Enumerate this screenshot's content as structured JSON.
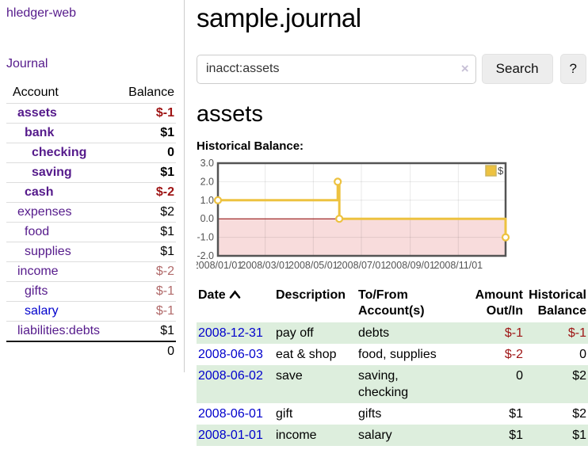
{
  "colors": {
    "link_purple": "#551a8b",
    "link_blue": "#0000cc",
    "negative_strong": "#9e1414",
    "negative_soft": "#b16a6a",
    "row_green": "#ddeedd",
    "chart_gold": "#edc240",
    "chart_negative_region": "#f8dcdc",
    "chart_zero_line": "#8b0000",
    "chart_border": "#545454"
  },
  "sidebar": {
    "brand": "hledger-web",
    "journal_link": "Journal",
    "accounts_table": {
      "headers": {
        "account": "Account",
        "balance": "Balance"
      },
      "rows": [
        {
          "account": "assets",
          "balance": "$-1",
          "indent": 1,
          "bold": true,
          "balance_tone": "strong",
          "link_color": "purple"
        },
        {
          "account": "bank",
          "balance": "$1",
          "indent": 2,
          "bold": true,
          "balance_tone": "none",
          "link_color": "purple"
        },
        {
          "account": "checking",
          "balance": "0",
          "indent": 3,
          "bold": true,
          "balance_tone": "none",
          "link_color": "purple"
        },
        {
          "account": "saving",
          "balance": "$1",
          "indent": 3,
          "bold": true,
          "balance_tone": "none",
          "link_color": "purple"
        },
        {
          "account": "cash",
          "balance": "$-2",
          "indent": 2,
          "bold": true,
          "balance_tone": "strong",
          "link_color": "purple"
        },
        {
          "account": "expenses",
          "balance": "$2",
          "indent": 1,
          "bold": false,
          "balance_tone": "none",
          "link_color": "purple"
        },
        {
          "account": "food",
          "balance": "$1",
          "indent": 2,
          "bold": false,
          "balance_tone": "none",
          "link_color": "purple"
        },
        {
          "account": "supplies",
          "balance": "$1",
          "indent": 2,
          "bold": false,
          "balance_tone": "none",
          "link_color": "purple"
        },
        {
          "account": "income",
          "balance": "$-2",
          "indent": 1,
          "bold": false,
          "balance_tone": "soft",
          "link_color": "purple"
        },
        {
          "account": "gifts",
          "balance": "$-1",
          "indent": 2,
          "bold": false,
          "balance_tone": "soft",
          "link_color": "purple"
        },
        {
          "account": "salary",
          "balance": "$-1",
          "indent": 2,
          "bold": false,
          "balance_tone": "soft",
          "link_color": "blue"
        },
        {
          "account": "liabilities:debts",
          "balance": "$1",
          "indent": 1,
          "bold": false,
          "balance_tone": "none",
          "link_color": "purple"
        }
      ],
      "total": "0"
    }
  },
  "main": {
    "title": "sample.journal",
    "search": {
      "value": "inacct:assets",
      "clear_icon": "×",
      "search_button": "Search",
      "help_button": "?"
    },
    "heading": "assets",
    "chart_title": "Historical Balance:",
    "register": {
      "headers": {
        "date": "Date",
        "description": "Description",
        "accounts": "To/From Account(s)",
        "amount": "Amount Out/In",
        "balance": "Historical Balance"
      },
      "rows": [
        {
          "date": "2008-12-31",
          "description": "pay off",
          "accounts": "debts",
          "amount": "$-1",
          "amount_tone": "strong",
          "balance": "$-1",
          "balance_tone": "strong",
          "green": true
        },
        {
          "date": "2008-06-03",
          "description": "eat & shop",
          "accounts": "food, supplies",
          "amount": "$-2",
          "amount_tone": "strong",
          "balance": "0",
          "balance_tone": "none",
          "green": false
        },
        {
          "date": "2008-06-02",
          "description": "save",
          "accounts": "saving, checking",
          "amount": "0",
          "amount_tone": "none",
          "balance": "$2",
          "balance_tone": "none",
          "green": true
        },
        {
          "date": "2008-06-01",
          "description": "gift",
          "accounts": "gifts",
          "amount": "$1",
          "amount_tone": "none",
          "balance": "$2",
          "balance_tone": "none",
          "green": false
        },
        {
          "date": "2008-01-01",
          "description": "income",
          "accounts": "salary",
          "amount": "$1",
          "amount_tone": "none",
          "balance": "$1",
          "balance_tone": "none",
          "green": true
        }
      ]
    }
  },
  "chart_data": {
    "type": "line",
    "step": true,
    "title": "Historical Balance:",
    "series": [
      {
        "name": "$",
        "color": "#edc240",
        "points": [
          [
            "2008/01/01",
            1
          ],
          [
            "2008/06/01",
            2
          ],
          [
            "2008/06/03",
            0
          ],
          [
            "2008/12/31",
            -1
          ]
        ]
      }
    ],
    "x_ticks": [
      "2008/01/01",
      "2008/03/01",
      "2008/05/01",
      "2008/07/01",
      "2008/09/01",
      "2008/11/01"
    ],
    "y_ticks": [
      "3.0",
      "2.0",
      "1.0",
      "0.0",
      "-1.0",
      "-2.0"
    ],
    "xlim": [
      "2008/01/01",
      "2008/12/31"
    ],
    "ylim": [
      -2,
      3
    ],
    "grid": true,
    "legend_position": "top-right",
    "negative_region": true
  }
}
